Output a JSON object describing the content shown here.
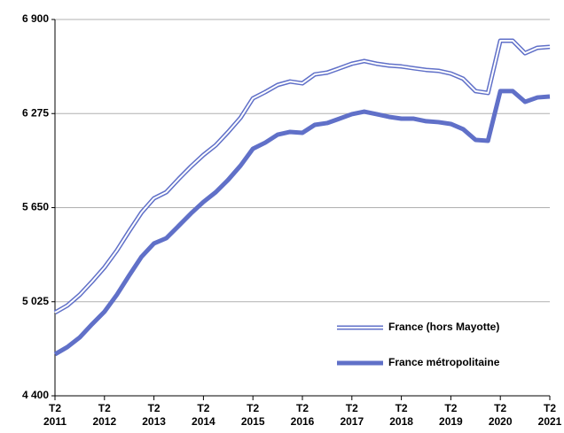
{
  "chart_data": {
    "type": "line",
    "categories": [
      "T2 2011",
      null,
      null,
      null,
      "T2 2012",
      null,
      null,
      null,
      "T2 2013",
      null,
      null,
      null,
      "T2 2014",
      null,
      null,
      null,
      "T2 2015",
      null,
      null,
      null,
      "T2 2016",
      null,
      null,
      null,
      "T2 2017",
      null,
      null,
      null,
      "T2 2018",
      null,
      null,
      null,
      "T2 2019",
      null,
      null,
      null,
      "T2 2020",
      null,
      null,
      null,
      "T2 2021"
    ],
    "series": [
      {
        "name": "France (hors Mayotte)",
        "color": "#6070c8",
        "style": "double",
        "values": [
          4953,
          5000,
          5071,
          5159,
          5253,
          5365,
          5494,
          5618,
          5712,
          5753,
          5841,
          5924,
          6000,
          6065,
          6153,
          6247,
          6376,
          6418,
          6465,
          6488,
          6476,
          6535,
          6547,
          6576,
          6606,
          6624,
          6606,
          6594,
          6588,
          6576,
          6565,
          6559,
          6541,
          6506,
          6424,
          6412,
          6759,
          6759,
          6676,
          6712,
          6718
        ]
      },
      {
        "name": "France métropolitaine",
        "color": "#6070c8",
        "style": "thick",
        "values": [
          4676,
          4724,
          4788,
          4876,
          4959,
          5071,
          5200,
          5324,
          5412,
          5447,
          5529,
          5612,
          5688,
          5753,
          5835,
          5929,
          6041,
          6082,
          6135,
          6153,
          6147,
          6200,
          6212,
          6241,
          6271,
          6288,
          6271,
          6253,
          6241,
          6241,
          6224,
          6218,
          6206,
          6171,
          6100,
          6094,
          6424,
          6424,
          6353,
          6382,
          6388
        ]
      }
    ],
    "ylim": [
      4400,
      6900
    ],
    "yticks": [
      {
        "value": 4400,
        "label": "4 400"
      },
      {
        "value": 5025,
        "label": "5 025"
      },
      {
        "value": 5650,
        "label": "5 650"
      },
      {
        "value": 6275,
        "label": "6 275"
      },
      {
        "value": 6900,
        "label": "6 900"
      }
    ],
    "grid": true,
    "legend": "lower right"
  }
}
